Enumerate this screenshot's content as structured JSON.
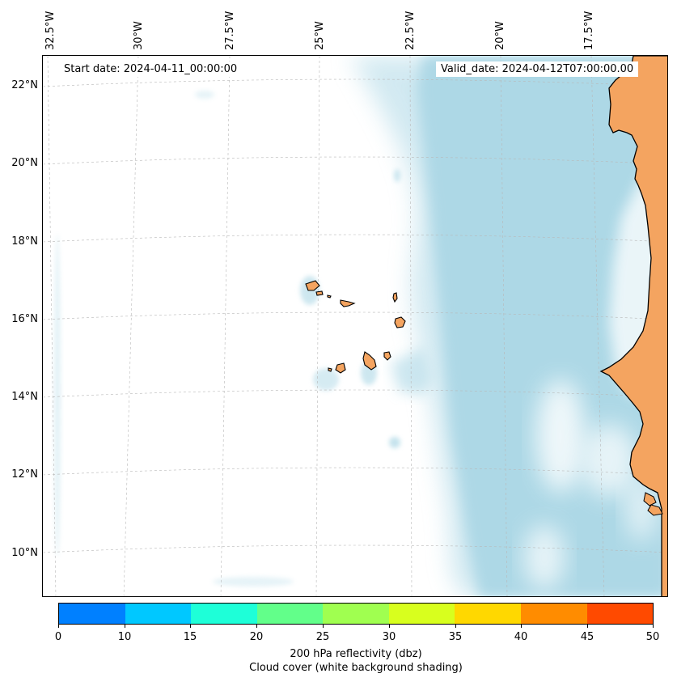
{
  "header": {
    "start_date": "Start date: 2024-04-11_00:00:00",
    "valid_date": "Valid_date: 2024-04-12T07:00:00.00"
  },
  "map": {
    "lon_labels": [
      "32.5°W",
      "30°W",
      "27.5°W",
      "25°W",
      "22.5°W",
      "20°W",
      "17.5°W"
    ],
    "lat_labels": [
      "22°N",
      "20°N",
      "18°N",
      "16°N",
      "14°N",
      "12°N",
      "10°N"
    ],
    "colors": {
      "land": "#f4a460",
      "cloud": "#add8e6",
      "coast": "#000000",
      "grid": "#b8b8b8"
    }
  },
  "colorbar": {
    "ticks": [
      "0",
      "10",
      "15",
      "20",
      "25",
      "30",
      "35",
      "40",
      "45",
      "50"
    ],
    "colors": [
      "#0080ff",
      "#00c8ff",
      "#1effd8",
      "#62ff8a",
      "#a0ff50",
      "#d8ff1e",
      "#ffd800",
      "#ff8c00",
      "#ff4a00"
    ],
    "label_line1": "200 hPa reflectivity (dbz)",
    "label_line2": "Cloud cover (white background shading)"
  }
}
